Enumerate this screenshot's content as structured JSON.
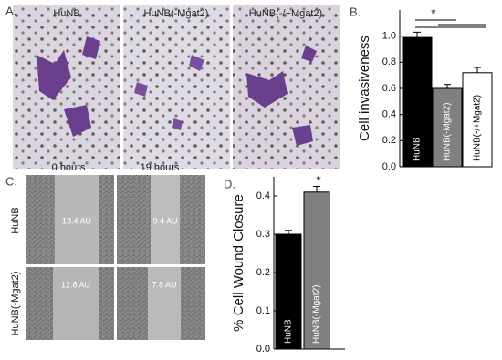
{
  "panels": {
    "A": {
      "letter": "A.",
      "images": [
        "HuNB",
        "HuNB(-Mgat2)",
        "HuNB(-/+Mgat2)"
      ]
    },
    "B": {
      "letter": "B."
    },
    "C": {
      "letter": "C.",
      "columns": [
        "0 hours",
        "19 hours"
      ],
      "rows": [
        "HuNB",
        "HuNB(-Mgat2)"
      ],
      "measurements": [
        [
          "13.4 AU",
          "9.4 AU"
        ],
        [
          "12.8 AU",
          "7.8 AU"
        ]
      ]
    },
    "D": {
      "letter": "D."
    }
  },
  "chart_data": [
    {
      "type": "bar",
      "ylabel": "Cell invasiveness",
      "annotation": "*",
      "categories": [
        "HuNB",
        "HuNB(-Mgat2)",
        "HuNB(-/+Mgat2)"
      ],
      "values": [
        0.99,
        0.6,
        0.72
      ],
      "errors": [
        0.04,
        0.03,
        0.04
      ],
      "colors": [
        "#000000",
        "#808080",
        "#ffffff"
      ],
      "ylim": [
        0,
        1.2
      ],
      "yticks": [
        {
          "value": 0,
          "label": "0.0"
        },
        0.2,
        0.4,
        0.6,
        0.8,
        {
          "value": 1,
          "label": "1.0"
        }
      ]
    },
    {
      "type": "bar",
      "ylabel": "% Cell Wound Closure",
      "annotation": "*",
      "categories": [
        "HuNB",
        "HuNB(-Mgat2)"
      ],
      "values": [
        0.3,
        0.41
      ],
      "errors": [
        0.01,
        0.015
      ],
      "colors": [
        "#000000",
        "#808080"
      ],
      "ylim": [
        0,
        0.45
      ],
      "yticks": [
        {
          "value": 0,
          "label": "0.0"
        },
        0.1,
        0.2,
        0.3,
        0.4
      ]
    }
  ]
}
